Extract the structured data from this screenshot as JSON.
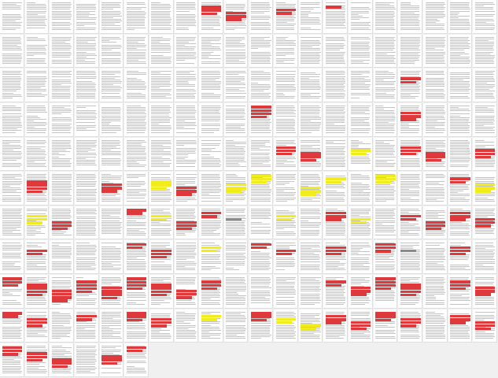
{
  "document": {
    "view": "page-thumbnail-grid",
    "columns": 20,
    "rows": 11,
    "page_count": 206,
    "highlight_colors": {
      "red": "#e0393b",
      "yellow": "#f2ec1c",
      "gray": "#8a8a8a"
    },
    "highlights": [
      {
        "page": 8,
        "color": "red",
        "lines": 3
      },
      {
        "page": 9,
        "color": "red",
        "lines": 3
      },
      {
        "page": 11,
        "color": "red",
        "lines": 2
      },
      {
        "page": 13,
        "color": "red",
        "lines": 1
      },
      {
        "page": 56,
        "color": "red",
        "lines": 2
      },
      {
        "page": 70,
        "color": "red",
        "lines": 4
      },
      {
        "page": 76,
        "color": "red",
        "lines": 3
      },
      {
        "page": 91,
        "color": "red",
        "lines": 3
      },
      {
        "page": 92,
        "color": "red",
        "lines": 3
      },
      {
        "page": 94,
        "color": "yellow",
        "lines": 2
      },
      {
        "page": 96,
        "color": "red",
        "lines": 3
      },
      {
        "page": 97,
        "color": "red",
        "lines": 3
      },
      {
        "page": 99,
        "color": "red",
        "lines": 3
      },
      {
        "page": 101,
        "color": "red",
        "lines": 4
      },
      {
        "page": 104,
        "color": "red",
        "lines": 3
      },
      {
        "page": 106,
        "color": "yellow",
        "lines": 3
      },
      {
        "page": 107,
        "color": "red",
        "lines": 3
      },
      {
        "page": 109,
        "color": "yellow",
        "lines": 3
      },
      {
        "page": 110,
        "color": "yellow",
        "lines": 3
      },
      {
        "page": 112,
        "color": "yellow",
        "lines": 3
      },
      {
        "page": 113,
        "color": "yellow",
        "lines": 2
      },
      {
        "page": 115,
        "color": "yellow",
        "lines": 3
      },
      {
        "page": 118,
        "color": "red",
        "lines": 2
      },
      {
        "page": 119,
        "color": "yellow",
        "lines": 3
      },
      {
        "page": 121,
        "color": "yellow",
        "lines": 3
      },
      {
        "page": 122,
        "color": "red",
        "lines": 3
      },
      {
        "page": 125,
        "color": "red",
        "lines": 2
      },
      {
        "page": 126,
        "color": "yellow",
        "lines": 2
      },
      {
        "page": 127,
        "color": "red",
        "lines": 3
      },
      {
        "page": 128,
        "color": "red",
        "lines": 2
      },
      {
        "page": 129,
        "color": "gray",
        "lines": 1
      },
      {
        "page": 131,
        "color": "yellow",
        "lines": 2
      },
      {
        "page": 133,
        "color": "red",
        "lines": 3
      },
      {
        "page": 134,
        "color": "yellow",
        "lines": 2
      },
      {
        "page": 136,
        "color": "red",
        "lines": 2
      },
      {
        "page": 137,
        "color": "red",
        "lines": 3
      },
      {
        "page": 138,
        "color": "red",
        "lines": 3
      },
      {
        "page": 139,
        "color": "red",
        "lines": 3
      },
      {
        "page": 141,
        "color": "red",
        "lines": 2
      },
      {
        "page": 145,
        "color": "red",
        "lines": 2
      },
      {
        "page": 146,
        "color": "red",
        "lines": 3
      },
      {
        "page": 148,
        "color": "yellow",
        "lines": 2
      },
      {
        "page": 150,
        "color": "red",
        "lines": 2
      },
      {
        "page": 151,
        "color": "red",
        "lines": 2
      },
      {
        "page": 153,
        "color": "red",
        "lines": 3
      },
      {
        "page": 155,
        "color": "red",
        "lines": 3
      },
      {
        "page": 156,
        "color": "gray",
        "lines": 1
      },
      {
        "page": 158,
        "color": "red",
        "lines": 3
      },
      {
        "page": 160,
        "color": "red",
        "lines": 3
      },
      {
        "page": 161,
        "color": "red",
        "lines": 4
      },
      {
        "page": 162,
        "color": "red",
        "lines": 4
      },
      {
        "page": 163,
        "color": "red",
        "lines": 4
      },
      {
        "page": 164,
        "color": "red",
        "lines": 4
      },
      {
        "page": 165,
        "color": "red",
        "lines": 4
      },
      {
        "page": 166,
        "color": "red",
        "lines": 4
      },
      {
        "page": 167,
        "color": "red",
        "lines": 3
      },
      {
        "page": 168,
        "color": "red",
        "lines": 3
      },
      {
        "page": 173,
        "color": "red",
        "lines": 2
      },
      {
        "page": 174,
        "color": "red",
        "lines": 3
      },
      {
        "page": 175,
        "color": "red",
        "lines": 4
      },
      {
        "page": 176,
        "color": "red",
        "lines": 4
      },
      {
        "page": 178,
        "color": "red",
        "lines": 3
      },
      {
        "page": 179,
        "color": "red",
        "lines": 3
      },
      {
        "page": 180,
        "color": "red",
        "lines": 2
      },
      {
        "page": 181,
        "color": "red",
        "lines": 3
      },
      {
        "page": 183,
        "color": "red",
        "lines": 2
      },
      {
        "page": 185,
        "color": "red",
        "lines": 3
      },
      {
        "page": 186,
        "color": "red",
        "lines": 3
      },
      {
        "page": 188,
        "color": "yellow",
        "lines": 2
      },
      {
        "page": 190,
        "color": "red",
        "lines": 3
      },
      {
        "page": 191,
        "color": "yellow",
        "lines": 2
      },
      {
        "page": 192,
        "color": "yellow",
        "lines": 2
      },
      {
        "page": 193,
        "color": "red",
        "lines": 3
      },
      {
        "page": 194,
        "color": "red",
        "lines": 3
      },
      {
        "page": 195,
        "color": "red",
        "lines": 3
      },
      {
        "page": 196,
        "color": "red",
        "lines": 3
      },
      {
        "page": 198,
        "color": "red",
        "lines": 3
      },
      {
        "page": 199,
        "color": "red",
        "lines": 3
      },
      {
        "page": 200,
        "color": "red",
        "lines": 3
      },
      {
        "page": 201,
        "color": "red",
        "lines": 3
      },
      {
        "page": 202,
        "color": "red",
        "lines": 3
      },
      {
        "page": 204,
        "color": "red",
        "lines": 3
      },
      {
        "page": 205,
        "color": "red",
        "lines": 2
      }
    ]
  }
}
